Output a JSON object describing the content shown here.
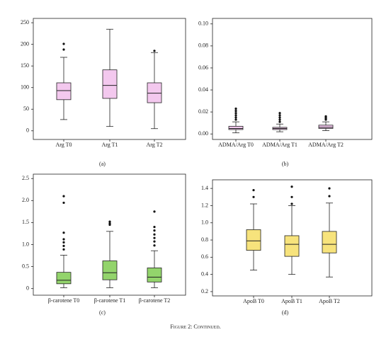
{
  "chart_data": [
    {
      "type": "box",
      "caption": "(a)",
      "color": "#f3c8ee",
      "categories": [
        "Arg T0",
        "Arg T1",
        "Arg T2"
      ],
      "boxes": [
        {
          "whisker_low": 26,
          "q1": 72,
          "median": 93,
          "q3": 111,
          "whisker_high": 170,
          "outliers": [
            188,
            201
          ]
        },
        {
          "whisker_low": 10,
          "q1": 75,
          "median": 105,
          "q3": 141,
          "whisker_high": 235,
          "outliers": []
        },
        {
          "whisker_low": 5,
          "q1": 65,
          "median": 87,
          "q3": 111,
          "whisker_high": 181,
          "outliers": [
            185
          ]
        }
      ],
      "ylim": [
        -20,
        260
      ],
      "yticks": [
        0,
        50,
        100,
        150,
        200,
        250
      ]
    },
    {
      "type": "box",
      "caption": "(b)",
      "color": "#f3c8ee",
      "categories": [
        "ADMA/Arg T0",
        "ADMA/Arg T1",
        "ADMA/Arg T2"
      ],
      "boxes": [
        {
          "whisker_low": 0.001,
          "q1": 0.004,
          "median": 0.005,
          "q3": 0.007,
          "whisker_high": 0.011,
          "outliers": [
            0.013,
            0.015,
            0.017,
            0.019,
            0.021,
            0.023
          ]
        },
        {
          "whisker_low": 0.002,
          "q1": 0.004,
          "median": 0.005,
          "q3": 0.006,
          "whisker_high": 0.009,
          "outliers": [
            0.011,
            0.013,
            0.015,
            0.017,
            0.019
          ]
        },
        {
          "whisker_low": 0.003,
          "q1": 0.005,
          "median": 0.006,
          "q3": 0.008,
          "whisker_high": 0.011,
          "outliers": [
            0.013,
            0.014,
            0.015,
            0.016
          ]
        }
      ],
      "ylim": [
        -0.005,
        0.105
      ],
      "yticks": [
        {
          "value": 0,
          "label": "0.00"
        },
        {
          "value": 0.02,
          "label": "0.02"
        },
        {
          "value": 0.04,
          "label": "0.04"
        },
        {
          "value": 0.06,
          "label": "0.06"
        },
        {
          "value": 0.08,
          "label": "0.08"
        },
        {
          "value": 0.1,
          "label": "0.10"
        }
      ]
    },
    {
      "type": "box",
      "caption": "(c)",
      "color": "#93d46c",
      "categories": [
        "β-carotene T0",
        "β-carotene T1",
        "β-carotene T2"
      ],
      "boxes": [
        {
          "whisker_low": 0.02,
          "q1": 0.11,
          "median": 0.19,
          "q3": 0.37,
          "whisker_high": 0.76,
          "outliers": [
            0.89,
            0.97,
            1.05,
            1.12,
            1.27,
            1.95,
            2.1
          ]
        },
        {
          "whisker_low": 0.02,
          "q1": 0.2,
          "median": 0.36,
          "q3": 0.63,
          "whisker_high": 1.3,
          "outliers": [
            1.45,
            1.48,
            1.52
          ]
        },
        {
          "whisker_low": 0.02,
          "q1": 0.15,
          "median": 0.26,
          "q3": 0.47,
          "whisker_high": 0.86,
          "outliers": [
            0.98,
            1.07,
            1.15,
            1.23,
            1.32,
            1.4,
            1.75
          ]
        }
      ],
      "ylim": [
        -0.15,
        2.6
      ],
      "yticks": [
        0,
        0.5,
        {
          "value": 1,
          "label": "1.0"
        },
        1.5,
        {
          "value": 2,
          "label": "2.0"
        },
        2.5
      ]
    },
    {
      "type": "box",
      "caption": "(d)",
      "color": "#f7e37c",
      "categories": [
        "ApoB T0",
        "ApoB T1",
        "ApoB T2"
      ],
      "boxes": [
        {
          "whisker_low": 0.45,
          "q1": 0.68,
          "median": 0.79,
          "q3": 0.92,
          "whisker_high": 1.22,
          "outliers": [
            1.3,
            1.38
          ]
        },
        {
          "whisker_low": 0.4,
          "q1": 0.61,
          "median": 0.75,
          "q3": 0.85,
          "whisker_high": 1.2,
          "outliers": [
            1.22,
            1.3,
            1.42
          ]
        },
        {
          "whisker_low": 0.37,
          "q1": 0.65,
          "median": 0.75,
          "q3": 0.9,
          "whisker_high": 1.23,
          "outliers": [
            1.31,
            1.4
          ]
        }
      ],
      "ylim": [
        0.15,
        1.5
      ],
      "yticks": [
        0.2,
        0.4,
        0.6,
        0.8,
        {
          "value": 1,
          "label": "1.0"
        },
        1.2,
        1.4
      ]
    }
  ],
  "figure_caption": "Figure 2: Continued."
}
